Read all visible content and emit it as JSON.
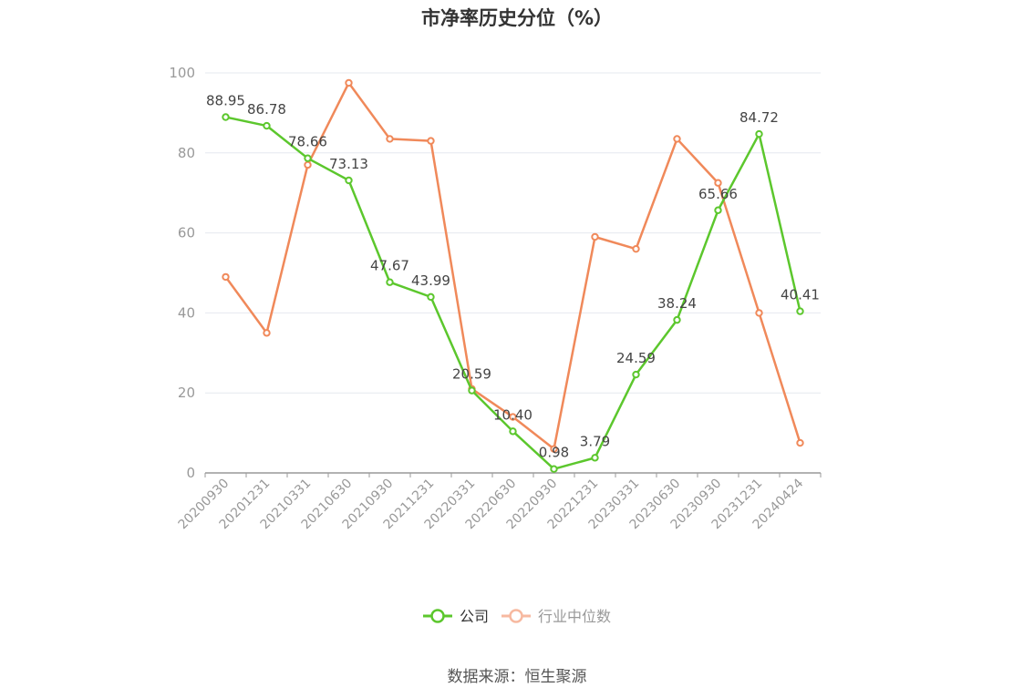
{
  "chart_data": {
    "type": "line",
    "title": "市净率历史分位（%）",
    "categories": [
      "20200930",
      "20201231",
      "20210331",
      "20210630",
      "20210930",
      "20211231",
      "20220331",
      "20220630",
      "20220930",
      "20221231",
      "20230331",
      "20230630",
      "20230930",
      "20231231",
      "20240424"
    ],
    "series": [
      {
        "name": "公司",
        "color": "#5cc72d",
        "values": [
          88.95,
          86.78,
          78.66,
          73.13,
          47.67,
          43.99,
          20.59,
          10.4,
          0.98,
          3.79,
          24.59,
          38.24,
          65.66,
          84.72,
          40.41
        ],
        "labels": [
          "88.95",
          "86.78",
          "78.66",
          "73.13",
          "47.67",
          "43.99",
          "20.59",
          "10.40",
          "0.98",
          "3.79",
          "24.59",
          "38.24",
          "65.66",
          "84.72",
          "40.41"
        ]
      },
      {
        "name": "行业中位数",
        "color": "#f0895a",
        "values": [
          49,
          35,
          77,
          97.5,
          83.5,
          83,
          21,
          14,
          6,
          59,
          56,
          83.5,
          72.5,
          40,
          7.5
        ]
      }
    ],
    "ylim": [
      0,
      100
    ],
    "yticks": [
      0,
      20,
      40,
      60,
      80,
      100
    ],
    "grid": true,
    "legend_position": "bottom-center",
    "legend_muted_color": "#f7b9a0"
  },
  "source_text": "数据来源：恒生聚源"
}
